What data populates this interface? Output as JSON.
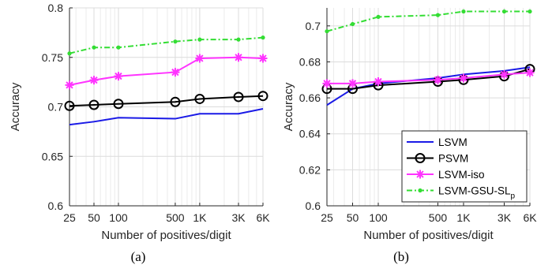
{
  "chart_data": [
    {
      "type": "line",
      "caption": "(a)",
      "xlabel": "Number of positives/digit",
      "ylabel": "Accuracy",
      "xscale": "log",
      "x": [
        25,
        50,
        100,
        500,
        1000,
        3000,
        6000
      ],
      "xtick_labels": [
        "25",
        "50",
        "100",
        "500",
        "1K",
        "3K",
        "6K"
      ],
      "ylim": [
        0.6,
        0.8
      ],
      "yticks": [
        0.6,
        0.65,
        0.7,
        0.75,
        0.8
      ],
      "ytick_labels": [
        "0.6",
        "0.65",
        "0.7",
        "0.75",
        "0.8"
      ],
      "grid": true,
      "series": [
        {
          "name": "LSVM",
          "color": "#1a1ae6",
          "style": "solid",
          "marker": "none",
          "values": [
            0.682,
            0.685,
            0.689,
            0.688,
            0.693,
            0.693,
            0.698
          ]
        },
        {
          "name": "PSVM",
          "color": "#000000",
          "style": "solid",
          "marker": "circle",
          "values": [
            0.701,
            0.702,
            0.703,
            0.705,
            0.708,
            0.71,
            0.711
          ]
        },
        {
          "name": "LSVM-iso",
          "color": "#ff33ff",
          "style": "solid",
          "marker": "star",
          "values": [
            0.722,
            0.727,
            0.731,
            0.735,
            0.749,
            0.75,
            0.749
          ]
        },
        {
          "name": "LSVM-GSU-SL_p",
          "color": "#33dd33",
          "style": "dashdot",
          "marker": "dot",
          "values": [
            0.754,
            0.76,
            0.76,
            0.766,
            0.768,
            0.768,
            0.77
          ]
        }
      ]
    },
    {
      "type": "line",
      "caption": "(b)",
      "xlabel": "Number of positives/digit",
      "ylabel": "Accuracy",
      "xscale": "log",
      "x": [
        25,
        50,
        100,
        500,
        1000,
        3000,
        6000
      ],
      "xtick_labels": [
        "25",
        "50",
        "100",
        "500",
        "1K",
        "3K",
        "6K"
      ],
      "ylim": [
        0.6,
        0.71
      ],
      "yticks": [
        0.6,
        0.62,
        0.64,
        0.66,
        0.68,
        0.7
      ],
      "ytick_labels": [
        "0.6",
        "0.62",
        "0.64",
        "0.66",
        "0.68",
        "0.7"
      ],
      "grid": true,
      "legend": {
        "position": "bottom-right",
        "entries": [
          {
            "name": "LSVM",
            "label": "LSVM"
          },
          {
            "name": "PSVM",
            "label": "PSVM"
          },
          {
            "name": "LSVM-iso",
            "label": "LSVM-iso"
          },
          {
            "name": "LSVM-GSU-SL_p",
            "label": "LSVM-GSU-SL",
            "subscript": "p"
          }
        ]
      },
      "series": [
        {
          "name": "LSVM",
          "color": "#1a1ae6",
          "style": "solid",
          "marker": "none",
          "values": [
            0.656,
            0.665,
            0.668,
            0.671,
            0.673,
            0.675,
            0.677
          ]
        },
        {
          "name": "PSVM",
          "color": "#000000",
          "style": "solid",
          "marker": "circle",
          "values": [
            0.665,
            0.665,
            0.667,
            0.669,
            0.67,
            0.672,
            0.676
          ]
        },
        {
          "name": "LSVM-iso",
          "color": "#ff33ff",
          "style": "solid",
          "marker": "star",
          "values": [
            0.668,
            0.668,
            0.669,
            0.67,
            0.671,
            0.673,
            0.674
          ]
        },
        {
          "name": "LSVM-GSU-SL_p",
          "color": "#33dd33",
          "style": "dashdot",
          "marker": "dot",
          "values": [
            0.697,
            0.701,
            0.705,
            0.706,
            0.708,
            0.708,
            0.708
          ]
        }
      ]
    }
  ]
}
